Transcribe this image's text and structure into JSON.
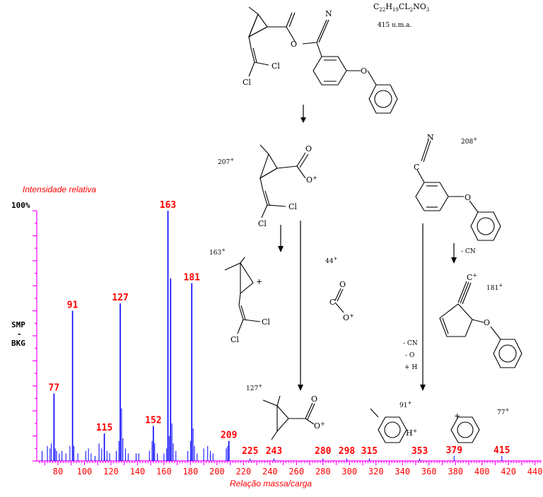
{
  "structures": {
    "parent": {
      "formula_base": "C",
      "formula_sub1": "22",
      "formula_h": "H",
      "formula_sub2": "19",
      "formula_cl": "CL",
      "formula_sub3": "2",
      "formula_rest": "NO",
      "formula_sub4": "3",
      "mass": "415 u.m.a.",
      "atom_n": "N",
      "atom_o": "O",
      "atom_cl_a": "Cl",
      "atom_cl_b": "Cl"
    },
    "frag_207": {
      "label": "207",
      "charge": "+",
      "atom_o_top": "O",
      "atom_o_ion": "O",
      "atom_cl_a": "Cl",
      "atom_cl_b": "Cl"
    },
    "frag_208": {
      "label": "208",
      "charge": "+",
      "atom_n": "N",
      "atom_c": "C",
      "atom_o": "O"
    },
    "frag_163": {
      "label": "163",
      "charge": "+",
      "ring_charge": "+",
      "atom_cl_a": "Cl",
      "atom_cl_b": "Cl"
    },
    "frag_44": {
      "label": "44",
      "charge": "+",
      "atom_c": "C",
      "atom_o_top": "O",
      "atom_o_ion": "O"
    },
    "frag_181": {
      "label": "181",
      "charge": "+",
      "atom_c": "C",
      "atom_o": "O"
    },
    "frag_127": {
      "label": "127",
      "charge": "+",
      "atom_o_top": "O",
      "atom_o_ion": "O"
    },
    "frag_91": {
      "label": "91",
      "charge": "+",
      "atom_h": "H"
    },
    "frag_77": {
      "label": "77",
      "charge": "+",
      "ring_charge": "+"
    },
    "loss_cn": "- CN",
    "loss_cn2": "- CN",
    "loss_o": "- O",
    "gain_h": "+ H"
  },
  "chart_data": {
    "type": "bar",
    "title": "",
    "ylabel_top": "Intensidade relativa",
    "xlabel": "Relação massa/carga",
    "y_top_label": "100%",
    "side_label_1": "SMP",
    "side_label_2": "-",
    "side_label_3": "BKG",
    "xlim": [
      64,
      445
    ],
    "ylim": [
      0,
      100
    ],
    "x_ticks": [
      80,
      100,
      120,
      140,
      160,
      180,
      200,
      220,
      240,
      260,
      280,
      300,
      320,
      340,
      360,
      380,
      400,
      420,
      440
    ],
    "major_peaks": [
      {
        "mz": 77,
        "intensity": 27
      },
      {
        "mz": 91,
        "intensity": 60
      },
      {
        "mz": 115,
        "intensity": 11
      },
      {
        "mz": 127,
        "intensity": 63
      },
      {
        "mz": 152,
        "intensity": 14
      },
      {
        "mz": 163,
        "intensity": 100
      },
      {
        "mz": 165,
        "intensity": 73
      },
      {
        "mz": 181,
        "intensity": 71
      },
      {
        "mz": 209,
        "intensity": 8
      }
    ],
    "peak_labels": [
      "77",
      "91",
      "115",
      "127",
      "152",
      "163",
      "181",
      "209",
      "225",
      "243",
      "280",
      "298",
      "315",
      "353",
      "379",
      "415"
    ],
    "peak_label_positions": [
      77,
      91,
      115,
      127,
      152,
      163,
      181,
      209,
      225,
      243,
      280,
      298,
      315,
      353,
      379,
      415
    ],
    "minor_peaks": [
      {
        "mz": 68,
        "intensity": 4
      },
      {
        "mz": 72,
        "intensity": 6
      },
      {
        "mz": 74,
        "intensity": 5
      },
      {
        "mz": 75,
        "intensity": 7
      },
      {
        "mz": 78,
        "intensity": 5
      },
      {
        "mz": 79,
        "intensity": 4
      },
      {
        "mz": 81,
        "intensity": 3
      },
      {
        "mz": 83,
        "intensity": 4
      },
      {
        "mz": 86,
        "intensity": 3
      },
      {
        "mz": 89,
        "intensity": 6
      },
      {
        "mz": 92,
        "intensity": 6
      },
      {
        "mz": 95,
        "intensity": 3
      },
      {
        "mz": 101,
        "intensity": 4
      },
      {
        "mz": 103,
        "intensity": 5
      },
      {
        "mz": 105,
        "intensity": 3
      },
      {
        "mz": 108,
        "intensity": 2
      },
      {
        "mz": 111,
        "intensity": 7
      },
      {
        "mz": 113,
        "intensity": 5
      },
      {
        "mz": 117,
        "intensity": 4
      },
      {
        "mz": 119,
        "intensity": 3
      },
      {
        "mz": 124,
        "intensity": 4
      },
      {
        "mz": 126,
        "intensity": 8
      },
      {
        "mz": 128,
        "intensity": 21
      },
      {
        "mz": 129,
        "intensity": 9
      },
      {
        "mz": 131,
        "intensity": 5
      },
      {
        "mz": 133,
        "intensity": 3
      },
      {
        "mz": 139,
        "intensity": 3
      },
      {
        "mz": 141,
        "intensity": 3
      },
      {
        "mz": 149,
        "intensity": 4
      },
      {
        "mz": 151,
        "intensity": 8
      },
      {
        "mz": 153,
        "intensity": 7
      },
      {
        "mz": 155,
        "intensity": 3
      },
      {
        "mz": 160,
        "intensity": 3
      },
      {
        "mz": 162,
        "intensity": 5
      },
      {
        "mz": 164,
        "intensity": 10
      },
      {
        "mz": 166,
        "intensity": 15
      },
      {
        "mz": 167,
        "intensity": 7
      },
      {
        "mz": 169,
        "intensity": 4
      },
      {
        "mz": 178,
        "intensity": 4
      },
      {
        "mz": 180,
        "intensity": 8
      },
      {
        "mz": 182,
        "intensity": 13
      },
      {
        "mz": 183,
        "intensity": 6
      },
      {
        "mz": 185,
        "intensity": 3
      },
      {
        "mz": 190,
        "intensity": 5
      },
      {
        "mz": 193,
        "intensity": 6
      },
      {
        "mz": 195,
        "intensity": 4
      },
      {
        "mz": 197,
        "intensity": 3
      },
      {
        "mz": 207,
        "intensity": 5
      },
      {
        "mz": 208,
        "intensity": 6
      },
      {
        "mz": 225,
        "intensity": 1
      },
      {
        "mz": 243,
        "intensity": 1
      },
      {
        "mz": 280,
        "intensity": 1
      },
      {
        "mz": 298,
        "intensity": 1
      },
      {
        "mz": 315,
        "intensity": 1
      },
      {
        "mz": 353,
        "intensity": 1
      },
      {
        "mz": 379,
        "intensity": 2
      },
      {
        "mz": 415,
        "intensity": 2
      }
    ],
    "colors": {
      "bars": "#0000ff",
      "labels": "#ff0000",
      "axis": "#ff00ff"
    }
  }
}
